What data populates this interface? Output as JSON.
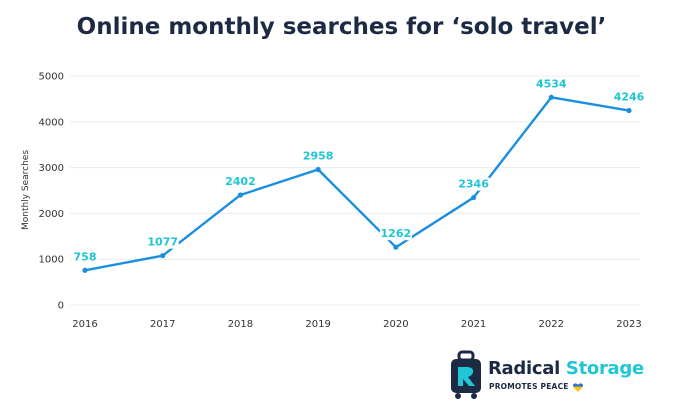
{
  "chart_data": {
    "type": "line",
    "title": "Online monthly searches for ‘solo travel’",
    "ylabel": "Monthly Searches",
    "xlabel": "",
    "x": [
      "2016",
      "2017",
      "2018",
      "2019",
      "2020",
      "2021",
      "2022",
      "2023"
    ],
    "values": [
      758,
      1077,
      2402,
      2958,
      1262,
      2346,
      4534,
      4246
    ],
    "yticks": [
      0,
      1000,
      2000,
      3000,
      4000,
      5000
    ],
    "ylim": [
      0,
      5000
    ],
    "grid": true,
    "legend": "none",
    "line_color": "#1a8fe0",
    "label_color": "#20c5d6"
  },
  "logo": {
    "name_part1": "Radical",
    "name_part2": "Storage",
    "tagline": "PROMOTES PEACE",
    "primary_color": "#1d2a44",
    "accent_color": "#20c5d6"
  }
}
